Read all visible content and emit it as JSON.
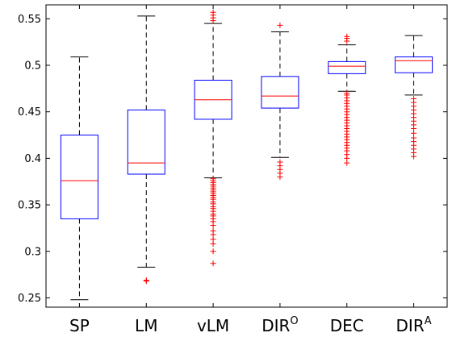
{
  "chart_data": {
    "type": "boxplot",
    "title": "",
    "xlabel": "",
    "ylabel": "",
    "ylim": [
      0.24,
      0.565
    ],
    "yticks": [
      "0.25",
      "0.3",
      "0.35",
      "0.4",
      "0.45",
      "0.5",
      "0.55"
    ],
    "grid": false,
    "legend": "none",
    "colors": {
      "box": "#0000ff",
      "median": "#ff0000",
      "whisker": "#000000",
      "outlier": "#ff0000"
    },
    "categories": [
      {
        "name": "SP",
        "sup": "",
        "whisker_low": 0.248,
        "q1": 0.335,
        "median": 0.376,
        "q3": 0.425,
        "whisker_high": 0.509,
        "outliers": []
      },
      {
        "name": "LM",
        "sup": "",
        "whisker_low": 0.283,
        "q1": 0.383,
        "median": 0.395,
        "q3": 0.452,
        "whisker_high": 0.553,
        "outliers": [
          0.269,
          0.268
        ]
      },
      {
        "name": "vLM",
        "sup": "",
        "whisker_low": 0.379,
        "q1": 0.442,
        "median": 0.463,
        "q3": 0.484,
        "whisker_high": 0.545,
        "outliers": [
          0.287,
          0.3,
          0.308,
          0.313,
          0.318,
          0.322,
          0.328,
          0.332,
          0.335,
          0.338,
          0.34,
          0.343,
          0.346,
          0.348,
          0.351,
          0.353,
          0.356,
          0.358,
          0.36,
          0.362,
          0.364,
          0.366,
          0.368,
          0.37,
          0.372,
          0.374,
          0.376,
          0.378,
          0.548,
          0.551,
          0.554,
          0.557
        ]
      },
      {
        "name": "DIR",
        "sup": "O",
        "whisker_low": 0.401,
        "q1": 0.454,
        "median": 0.467,
        "q3": 0.488,
        "whisker_high": 0.536,
        "outliers": [
          0.38,
          0.384,
          0.388,
          0.392,
          0.396,
          0.543
        ]
      },
      {
        "name": "DEC",
        "sup": "",
        "whisker_low": 0.472,
        "q1": 0.491,
        "median": 0.499,
        "q3": 0.504,
        "whisker_high": 0.522,
        "outliers": [
          0.395,
          0.4,
          0.404,
          0.408,
          0.411,
          0.414,
          0.417,
          0.42,
          0.423,
          0.426,
          0.429,
          0.432,
          0.435,
          0.438,
          0.441,
          0.444,
          0.447,
          0.45,
          0.453,
          0.456,
          0.459,
          0.462,
          0.465,
          0.468,
          0.47,
          0.526,
          0.529,
          0.531
        ]
      },
      {
        "name": "DIR",
        "sup": "A",
        "whisker_low": 0.468,
        "q1": 0.492,
        "median": 0.505,
        "q3": 0.509,
        "whisker_high": 0.532,
        "outliers": [
          0.402,
          0.406,
          0.41,
          0.414,
          0.418,
          0.422,
          0.427,
          0.432,
          0.436,
          0.44,
          0.444,
          0.448,
          0.452,
          0.456,
          0.46,
          0.464
        ]
      }
    ]
  }
}
